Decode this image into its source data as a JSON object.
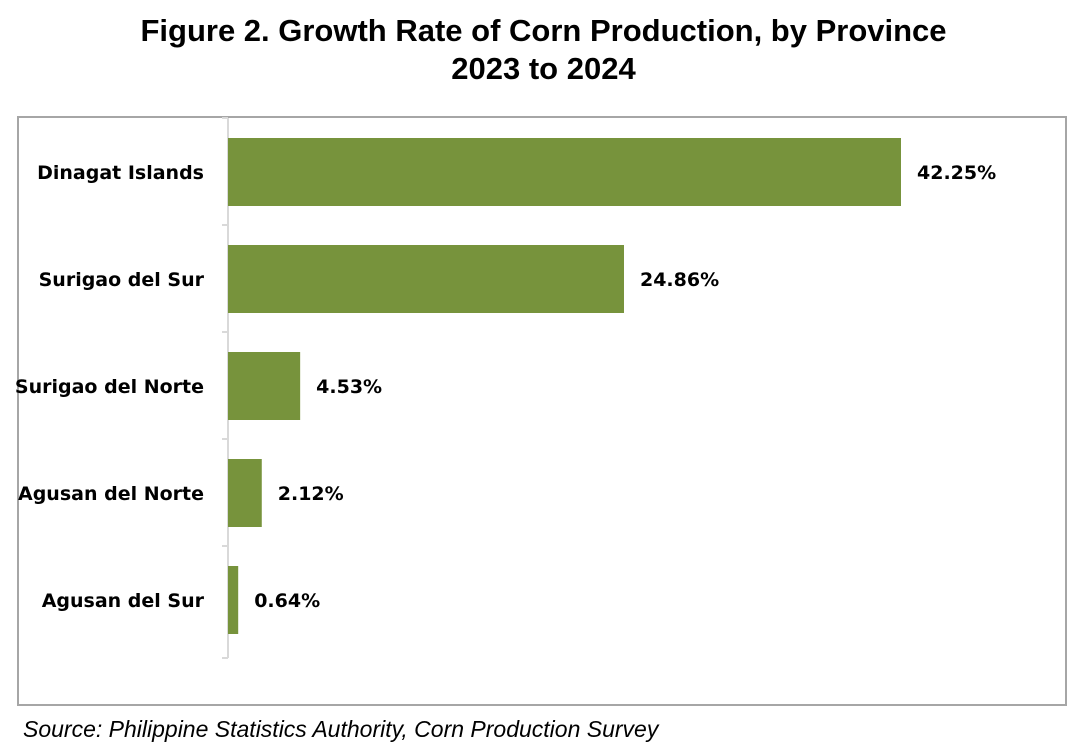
{
  "title_line1": "Figure 2. Growth Rate of Corn Production, by Province",
  "title_line2": "2023 to 2024",
  "source": "Source: Philippine Statistics Authority, Corn Production Survey",
  "bar_color": "#77933c",
  "chart_data": {
    "type": "bar",
    "orientation": "horizontal",
    "categories": [
      "Dinagat Islands",
      "Surigao del Sur",
      "Surigao del Norte",
      "Agusan del Norte",
      "Agusan del Sur"
    ],
    "values": [
      42.25,
      24.86,
      4.53,
      2.12,
      0.64
    ],
    "value_labels": [
      "42.25%",
      "24.86%",
      "4.53%",
      "2.12%",
      "0.64%"
    ],
    "xlim": [
      0,
      50
    ],
    "grid": false,
    "legend": "none"
  }
}
